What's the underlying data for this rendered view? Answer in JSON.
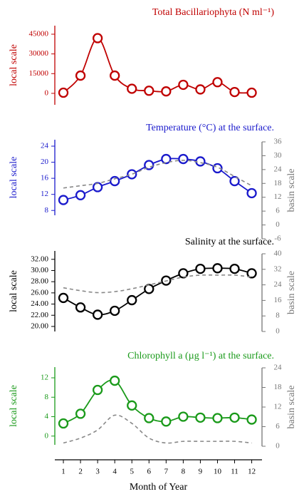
{
  "chart_data": [
    {
      "type": "line",
      "title": "Total Bacillariophyta (N ml⁻¹)",
      "ylabel": "local scale",
      "x": [
        1,
        2,
        3,
        4,
        5,
        6,
        7,
        8,
        9,
        10,
        11,
        12
      ],
      "ylim": [
        -8700,
        51500
      ],
      "yticks": [
        0,
        15000,
        30000,
        45000
      ],
      "color": "#c00000",
      "series": [
        {
          "color": "#c00000",
          "values": [
            500,
            13500,
            42000,
            13500,
            3500,
            2000,
            1500,
            6500,
            3000,
            8500,
            1000,
            500
          ]
        }
      ]
    },
    {
      "type": "line",
      "title": "Temperature (°C) at the surface.",
      "ylabel": "local scale",
      "y2label": "basin scale",
      "x": [
        1,
        2,
        3,
        4,
        5,
        6,
        7,
        8,
        9,
        10,
        11,
        12
      ],
      "ylim": [
        6.8,
        25.6
      ],
      "yticks": [
        8,
        12,
        16,
        20,
        24
      ],
      "y2lim": [
        -6,
        36
      ],
      "y2ticks": [
        -6,
        0,
        6,
        12,
        18,
        24,
        30,
        36
      ],
      "color": "#1a1acc",
      "series": [
        {
          "color": "#1a1acc",
          "values": [
            10.6,
            11.8,
            13.8,
            15.3,
            17,
            19.3,
            20.8,
            20.8,
            20.2,
            18.5,
            15.3,
            12.3
          ]
        },
        {
          "color": "#888888",
          "axis": "y2",
          "dashed": true,
          "values": [
            16,
            17,
            18,
            20,
            22,
            25,
            27,
            28,
            27,
            25,
            21,
            17
          ]
        }
      ]
    },
    {
      "type": "line",
      "title": "Salinity at the surface.",
      "ylabel": "local scale",
      "y2label": "basin scale",
      "x": [
        1,
        2,
        3,
        4,
        5,
        6,
        7,
        8,
        9,
        10,
        11,
        12
      ],
      "ylim": [
        19.1,
        33.5
      ],
      "yticks": [
        {
          "value": 20,
          "label": "20.00"
        },
        {
          "value": 22,
          "label": "22.00"
        },
        {
          "value": 24,
          "label": "24.00"
        },
        {
          "value": 26,
          "label": "26.00"
        },
        {
          "value": 28,
          "label": "28.00"
        },
        {
          "value": 30,
          "label": "30.00"
        },
        {
          "value": 32,
          "label": "32.00"
        }
      ],
      "y2lim": [
        0,
        40
      ],
      "y2ticks": [
        0,
        8,
        16,
        24,
        32,
        40
      ],
      "color": "#000000",
      "series": [
        {
          "color": "#000000",
          "values": [
            25.1,
            23.4,
            22.1,
            22.8,
            24.7,
            26.7,
            28.2,
            29.5,
            30.3,
            30.4,
            30.3,
            29.5
          ]
        },
        {
          "color": "#888888",
          "axis": "y2",
          "dashed": true,
          "values": [
            22.5,
            21,
            20,
            20.5,
            22,
            24,
            26,
            28,
            29,
            29,
            29,
            28
          ]
        }
      ]
    },
    {
      "type": "line",
      "title": "Chlorophyll a (µg l⁻¹) at the surface.",
      "ylabel": "local scale",
      "y2label": "basin scale",
      "x": [
        1,
        2,
        3,
        4,
        5,
        6,
        7,
        8,
        9,
        10,
        11,
        12
      ],
      "xlim": [
        0.5,
        12.6
      ],
      "xticks": [
        1,
        2,
        3,
        4,
        5,
        6,
        7,
        8,
        9,
        10,
        11,
        12
      ],
      "xlabel": "Month of Year",
      "ylim": [
        -1.8,
        14.2
      ],
      "yticks": [
        0,
        4,
        8,
        12
      ],
      "y2lim": [
        0,
        24
      ],
      "y2ticks": [
        0,
        6,
        12,
        18,
        24
      ],
      "color": "#1a9a1a",
      "series": [
        {
          "color": "#1a9a1a",
          "values": [
            2.6,
            4.6,
            9.5,
            11.4,
            6.3,
            3.7,
            3.0,
            4.0,
            3.8,
            3.7,
            3.8,
            3.4
          ]
        },
        {
          "color": "#888888",
          "axis": "y2",
          "dashed": true,
          "values": [
            1,
            2.5,
            5,
            9.5,
            7,
            2.5,
            1,
            1.5,
            1.5,
            1.5,
            1.5,
            1
          ]
        }
      ]
    }
  ]
}
